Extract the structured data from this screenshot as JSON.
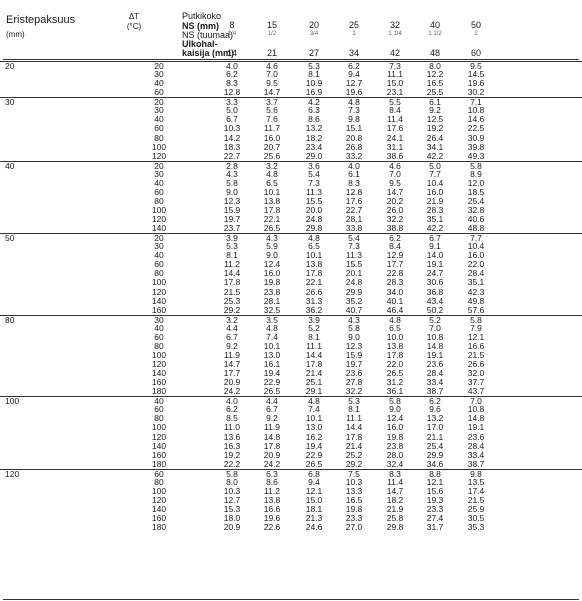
{
  "header": {
    "title": "Eristepaksuus",
    "title_unit": "(mm)",
    "delta_t": "ΔT",
    "delta_t_unit": "(°C)",
    "pipe_size": "Putkikoko",
    "ns_mm": "NS (mm)",
    "ns_inch": "NS (tuumaa)",
    "od_line1": "Ulkohal-",
    "od_line2": "kaisija (mm)"
  },
  "columns": [
    {
      "ns": "8",
      "frac": "1/4",
      "od": "14"
    },
    {
      "ns": "15",
      "frac": "1/2",
      "od": "21"
    },
    {
      "ns": "20",
      "frac": "3/4",
      "od": "27"
    },
    {
      "ns": "25",
      "frac": "1",
      "od": "34"
    },
    {
      "ns": "32",
      "frac": "1 1/4",
      "od": "42"
    },
    {
      "ns": "40",
      "frac": "1 1/2",
      "od": "48"
    },
    {
      "ns": "50",
      "frac": "2",
      "od": "60"
    }
  ],
  "groups": [
    {
      "thickness": "20",
      "rows": [
        {
          "dt": "20",
          "v": [
            "4.0",
            "4.6",
            "5.3",
            "6.2",
            "7.3",
            "8.0",
            "9.5"
          ]
        },
        {
          "dt": "30",
          "v": [
            "6.2",
            "7.0",
            "8.1",
            "9.4",
            "11.1",
            "12.2",
            "14.5"
          ]
        },
        {
          "dt": "40",
          "v": [
            "8.3",
            "9.5",
            "10.9",
            "12.7",
            "15.0",
            "16.5",
            "19.6"
          ]
        },
        {
          "dt": "60",
          "v": [
            "12.8",
            "14.7",
            "16.9",
            "19.6",
            "23.1",
            "25.5",
            "30.2"
          ]
        }
      ]
    },
    {
      "thickness": "30",
      "rows": [
        {
          "dt": "20",
          "v": [
            "3.3",
            "3.7",
            "4.2",
            "4.8",
            "5.5",
            "6.1",
            "7.1"
          ]
        },
        {
          "dt": "30",
          "v": [
            "5.0",
            "5.6",
            "6.3",
            "7.3",
            "8.4",
            "9.2",
            "10.8"
          ]
        },
        {
          "dt": "40",
          "v": [
            "6.7",
            "7.6",
            "8.6",
            "9.8",
            "11.4",
            "12.5",
            "14.6"
          ]
        },
        {
          "dt": "60",
          "v": [
            "10.3",
            "11.7",
            "13.2",
            "15.1",
            "17.6",
            "19.2",
            "22.5"
          ]
        },
        {
          "dt": "80",
          "v": [
            "14.2",
            "16.0",
            "18.2",
            "20.8",
            "24.1",
            "26.4",
            "30.9"
          ]
        },
        {
          "dt": "100",
          "v": [
            "18.3",
            "20.7",
            "23.4",
            "26.8",
            "31.1",
            "34.1",
            "39.8"
          ]
        },
        {
          "dt": "120",
          "v": [
            "22.7",
            "25.6",
            "29.0",
            "33.2",
            "38.6",
            "42.2",
            "49.3"
          ]
        }
      ]
    },
    {
      "thickness": "40",
      "rows": [
        {
          "dt": "20",
          "v": [
            "2.8",
            "3.2",
            "3.6",
            "4.0",
            "4.6",
            "5.0",
            "5.8"
          ]
        },
        {
          "dt": "30",
          "v": [
            "4.3",
            "4.8",
            "5.4",
            "6.1",
            "7.0",
            "7.7",
            "8.9"
          ]
        },
        {
          "dt": "40",
          "v": [
            "5.8",
            "6.5",
            "7.3",
            "8.3",
            "9.5",
            "10.4",
            "12.0"
          ]
        },
        {
          "dt": "60",
          "v": [
            "9.0",
            "10.1",
            "11.3",
            "12.8",
            "14.7",
            "16.0",
            "18.5"
          ]
        },
        {
          "dt": "80",
          "v": [
            "12.3",
            "13.8",
            "15.5",
            "17.6",
            "20.2",
            "21.9",
            "25.4"
          ]
        },
        {
          "dt": "100",
          "v": [
            "15.9",
            "17.8",
            "20.0",
            "22.7",
            "26.0",
            "28.3",
            "32.8"
          ]
        },
        {
          "dt": "120",
          "v": [
            "19.7",
            "22.1",
            "24.8",
            "28.1",
            "32.2",
            "35.1",
            "40.6"
          ]
        },
        {
          "dt": "140",
          "v": [
            "23.7",
            "26.5",
            "29.8",
            "33.8",
            "38.8",
            "42.2",
            "48.8"
          ]
        }
      ]
    },
    {
      "thickness": "50",
      "rows": [
        {
          "dt": "20",
          "v": [
            "3.9",
            "4.3",
            "4.8",
            "5.4",
            "6.2",
            "6.7",
            "7.7"
          ]
        },
        {
          "dt": "30",
          "v": [
            "5.3",
            "5.9",
            "6.5",
            "7.3",
            "8.4",
            "9.1",
            "10.4"
          ]
        },
        {
          "dt": "40",
          "v": [
            "8.1",
            "9.0",
            "10.1",
            "11.3",
            "12.9",
            "14.0",
            "16.0"
          ]
        },
        {
          "dt": "60",
          "v": [
            "11.2",
            "12.4",
            "13.8",
            "15.5",
            "17.7",
            "19.1",
            "22.0"
          ]
        },
        {
          "dt": "80",
          "v": [
            "14.4",
            "16.0",
            "17.8",
            "20.1",
            "22.8",
            "24.7",
            "28.4"
          ]
        },
        {
          "dt": "100",
          "v": [
            "17.8",
            "19.8",
            "22.1",
            "24.8",
            "28.3",
            "30.6",
            "35.1"
          ]
        },
        {
          "dt": "120",
          "v": [
            "21.5",
            "23.8",
            "26.6",
            "29.9",
            "34.0",
            "36.8",
            "42.3"
          ]
        },
        {
          "dt": "140",
          "v": [
            "25.3",
            "28.1",
            "31.3",
            "35.2",
            "40.1",
            "43.4",
            "49.8"
          ]
        },
        {
          "dt": "160",
          "v": [
            "29.2",
            "32.5",
            "36.2",
            "40.7",
            "46.4",
            "50.2",
            "57.6"
          ]
        }
      ]
    },
    {
      "thickness": "80",
      "rows": [
        {
          "dt": "30",
          "v": [
            "3.2",
            "3.5",
            "3.9",
            "4.3",
            "4.8",
            "5.2",
            "5.8"
          ]
        },
        {
          "dt": "40",
          "v": [
            "4.4",
            "4.8",
            "5.2",
            "5.8",
            "6.5",
            "7.0",
            "7.9"
          ]
        },
        {
          "dt": "60",
          "v": [
            "6.7",
            "7.4",
            "8.1",
            "9.0",
            "10.0",
            "10.8",
            "12.1"
          ]
        },
        {
          "dt": "80",
          "v": [
            "9.2",
            "10.1",
            "11.1",
            "12.3",
            "13.8",
            "14.8",
            "16.6"
          ]
        },
        {
          "dt": "100",
          "v": [
            "11.9",
            "13.0",
            "14.4",
            "15.9",
            "17.8",
            "19.1",
            "21.5"
          ]
        },
        {
          "dt": "120",
          "v": [
            "14.7",
            "16.1",
            "17.8",
            "19.7",
            "22.0",
            "23.6",
            "26.6"
          ]
        },
        {
          "dt": "140",
          "v": [
            "17.7",
            "19.4",
            "21.4",
            "23.6",
            "26.5",
            "28.4",
            "32.0"
          ]
        },
        {
          "dt": "160",
          "v": [
            "20.9",
            "22.9",
            "25.1",
            "27.8",
            "31.2",
            "33.4",
            "37.7"
          ]
        },
        {
          "dt": "180",
          "v": [
            "24.2",
            "26.5",
            "29.1",
            "32.2",
            "36.1",
            "38.7",
            "43.7"
          ]
        }
      ]
    },
    {
      "thickness": "100",
      "rows": [
        {
          "dt": "40",
          "v": [
            "4.0",
            "4.4",
            "4.8",
            "5.3",
            "5.8",
            "6.2",
            "7.0"
          ]
        },
        {
          "dt": "60",
          "v": [
            "6.2",
            "6.7",
            "7.4",
            "8.1",
            "9.0",
            "9.6",
            "10.8"
          ]
        },
        {
          "dt": "80",
          "v": [
            "8.5",
            "9.2",
            "10.1",
            "11.1",
            "12.4",
            "13.2",
            "14.8"
          ]
        },
        {
          "dt": "100",
          "v": [
            "11.0",
            "11.9",
            "13.0",
            "14.4",
            "16.0",
            "17.0",
            "19.1"
          ]
        },
        {
          "dt": "120",
          "v": [
            "13.6",
            "14.8",
            "16.2",
            "17.8",
            "19.8",
            "21.1",
            "23.6"
          ]
        },
        {
          "dt": "140",
          "v": [
            "16.3",
            "17.8",
            "19.4",
            "21.4",
            "23.8",
            "25.4",
            "28.4"
          ]
        },
        {
          "dt": "160",
          "v": [
            "19.2",
            "20.9",
            "22.9",
            "25.2",
            "28.0",
            "29.9",
            "33.4"
          ]
        },
        {
          "dt": "180",
          "v": [
            "22.2",
            "24.2",
            "26.5",
            "29.2",
            "32.4",
            "34.6",
            "38.7"
          ]
        }
      ]
    },
    {
      "thickness": "120",
      "rows": [
        {
          "dt": "60",
          "v": [
            "5.8",
            "6.3",
            "6.8",
            "7.5",
            "8.3",
            "8.8",
            "9.8"
          ]
        },
        {
          "dt": "80",
          "v": [
            "8.0",
            "8.6",
            "9.4",
            "10.3",
            "11.4",
            "12.1",
            "13.5"
          ]
        },
        {
          "dt": "100",
          "v": [
            "10.3",
            "11.2",
            "12.1",
            "13.3",
            "14.7",
            "15.6",
            "17.4"
          ]
        },
        {
          "dt": "120",
          "v": [
            "12.7",
            "13.8",
            "15.0",
            "16.5",
            "18.2",
            "19.3",
            "21.5"
          ]
        },
        {
          "dt": "140",
          "v": [
            "15.3",
            "16.6",
            "18.1",
            "19.8",
            "21.9",
            "23.3",
            "25.9"
          ]
        },
        {
          "dt": "160",
          "v": [
            "18.0",
            "19.6",
            "21.3",
            "23.3",
            "25.8",
            "27.4",
            "30.5"
          ]
        },
        {
          "dt": "180",
          "v": [
            "20.9",
            "22.6",
            "24.6",
            "27.0",
            "29.8",
            "31.7",
            "35.3"
          ]
        }
      ]
    }
  ]
}
